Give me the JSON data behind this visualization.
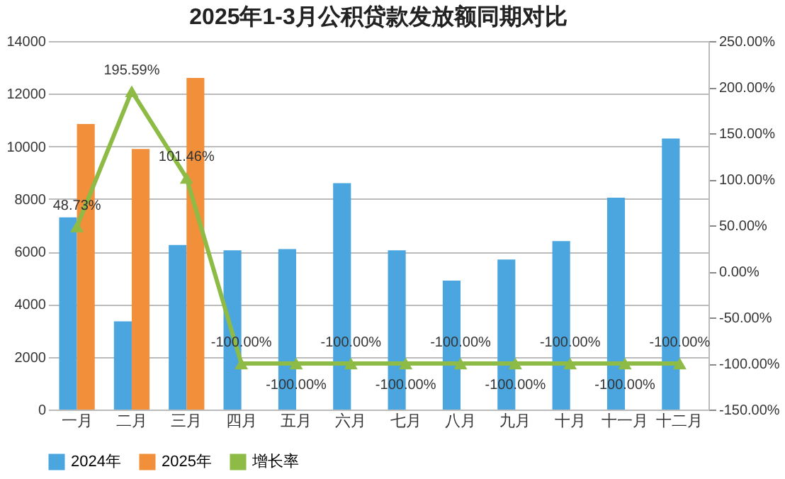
{
  "chart_data": {
    "type": "bar",
    "title": "2025年1-3月公积贷款发放额同期对比",
    "categories": [
      "一月",
      "二月",
      "三月",
      "四月",
      "五月",
      "六月",
      "七月",
      "八月",
      "九月",
      "十月",
      "十一月",
      "十二月"
    ],
    "series": [
      {
        "name": "2024年",
        "color": "#4ba6e0",
        "values": [
          7300,
          3350,
          6250,
          6050,
          6100,
          8600,
          6050,
          4900,
          5700,
          6400,
          8050,
          10300
        ]
      },
      {
        "name": "2025年",
        "color": "#f28f3b",
        "values": [
          10850,
          9900,
          12600,
          null,
          null,
          null,
          null,
          null,
          null,
          null,
          null,
          null
        ]
      },
      {
        "name": "增长率",
        "type": "line",
        "axis": "y2",
        "color": "#8dbb45",
        "marker": "triangle",
        "values": [
          48.73,
          195.59,
          101.46,
          -100,
          -100,
          -100,
          -100,
          -100,
          -100,
          -100,
          -100,
          -100
        ],
        "value_labels": [
          "48.73%",
          "195.59%",
          "101.46%",
          "-100.00%",
          "-100.00%",
          "-100.00%",
          "-100.00%",
          "-100.00%",
          "-100.00%",
          "-100.00%",
          "-100.00%",
          "-100.00%"
        ]
      }
    ],
    "ylim": [
      0,
      14000
    ],
    "yticks": [
      0,
      2000,
      4000,
      6000,
      8000,
      10000,
      12000,
      14000
    ],
    "y2lim": [
      -150,
      250
    ],
    "y2ticks": [
      {
        "value": -150,
        "label": "-150.00%"
      },
      {
        "value": -100,
        "label": "-100.00%"
      },
      {
        "value": -50,
        "label": "-50.00%"
      },
      {
        "value": 0,
        "label": "0.00%"
      },
      {
        "value": 50,
        "label": "50.00%"
      },
      {
        "value": 100,
        "label": "100.00%"
      },
      {
        "value": 150,
        "label": "150.00%"
      },
      {
        "value": 200,
        "label": "200.00%"
      },
      {
        "value": 250,
        "label": "250.00%"
      }
    ],
    "grid": "y",
    "legend": "bottom"
  }
}
